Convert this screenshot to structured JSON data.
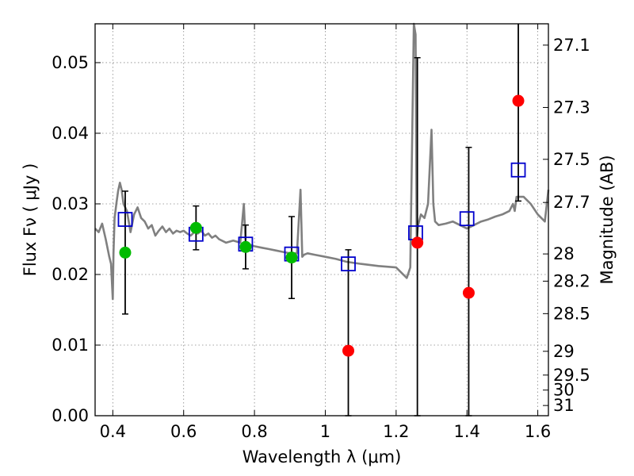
{
  "chart_data": {
    "type": "scatter",
    "title": "",
    "xlabel": "Wavelength  λ (μm)",
    "ylabel": "Flux  Fν ( μJy )",
    "ylabel_right": "Magnitude (AB)",
    "xlim": [
      0.35,
      1.63
    ],
    "ylim": [
      0.0,
      0.0555
    ],
    "grid": true,
    "legend": "none",
    "x_ticks": [
      {
        "value": 0.4,
        "label": "0.4"
      },
      {
        "value": 0.6,
        "label": "0.6"
      },
      {
        "value": 0.8,
        "label": "0.8"
      },
      {
        "value": 1.0,
        "label": "1"
      },
      {
        "value": 1.2,
        "label": "1.2"
      },
      {
        "value": 1.4,
        "label": "1.4"
      },
      {
        "value": 1.6,
        "label": "1.6"
      }
    ],
    "y_ticks": [
      {
        "value": 0.0,
        "label": "0.00"
      },
      {
        "value": 0.01,
        "label": "0.01"
      },
      {
        "value": 0.02,
        "label": "0.02"
      },
      {
        "value": 0.03,
        "label": "0.03"
      },
      {
        "value": 0.04,
        "label": "0.04"
      },
      {
        "value": 0.05,
        "label": "0.05"
      }
    ],
    "right_ticks": [
      {
        "value": 27.1,
        "label": "27.1"
      },
      {
        "value": 27.3,
        "label": "27.3"
      },
      {
        "value": 27.5,
        "label": "27.5"
      },
      {
        "value": 27.7,
        "label": "27.7"
      },
      {
        "value": 28.0,
        "label": "28"
      },
      {
        "value": 28.2,
        "label": "28.2"
      },
      {
        "value": 28.5,
        "label": "28.5"
      },
      {
        "value": 29.0,
        "label": "29"
      },
      {
        "value": 29.5,
        "label": "29.5"
      },
      {
        "value": 30.0,
        "label": "30"
      },
      {
        "value": 31.0,
        "label": "31"
      }
    ],
    "colors": {
      "model": "#808080",
      "model_photometry": "#0000cc",
      "detections": "#00bb00",
      "nondetections": "#ff0000",
      "errorbars": "#000000",
      "grid": "#888888"
    },
    "series": [
      {
        "kind": "line",
        "x": [
          0.35,
          0.36,
          0.37,
          0.38,
          0.39,
          0.395,
          0.4,
          0.402,
          0.405,
          0.41,
          0.415,
          0.42,
          0.425,
          0.43,
          0.44,
          0.45,
          0.46,
          0.47,
          0.48,
          0.49,
          0.5,
          0.51,
          0.52,
          0.53,
          0.54,
          0.55,
          0.56,
          0.57,
          0.58,
          0.59,
          0.6,
          0.61,
          0.62,
          0.63,
          0.64,
          0.65,
          0.66,
          0.67,
          0.68,
          0.69,
          0.7,
          0.72,
          0.74,
          0.76,
          0.77,
          0.775,
          0.78,
          0.8,
          0.82,
          0.84,
          0.86,
          0.88,
          0.9,
          0.92,
          0.93,
          0.935,
          0.94,
          0.95,
          0.97,
          1.0,
          1.03,
          1.06,
          1.1,
          1.15,
          1.2,
          1.23,
          1.24,
          1.25,
          1.255,
          1.258,
          1.262,
          1.27,
          1.28,
          1.29,
          1.3,
          1.305,
          1.31,
          1.32,
          1.34,
          1.36,
          1.38,
          1.4,
          1.42,
          1.44,
          1.46,
          1.48,
          1.5,
          1.52,
          1.53,
          1.535,
          1.54,
          1.56,
          1.58,
          1.6,
          1.62,
          1.63
        ],
        "y": [
          0.0265,
          0.026,
          0.0272,
          0.025,
          0.0225,
          0.0215,
          0.0165,
          0.023,
          0.028,
          0.03,
          0.0318,
          0.033,
          0.032,
          0.03,
          0.029,
          0.026,
          0.0285,
          0.0295,
          0.028,
          0.0275,
          0.0265,
          0.027,
          0.0255,
          0.0262,
          0.0268,
          0.026,
          0.0265,
          0.0258,
          0.0262,
          0.026,
          0.0262,
          0.0258,
          0.0255,
          0.026,
          0.0258,
          0.0262,
          0.0255,
          0.0258,
          0.0252,
          0.0255,
          0.025,
          0.0245,
          0.0248,
          0.0245,
          0.03,
          0.0245,
          0.0243,
          0.024,
          0.0238,
          0.0236,
          0.0234,
          0.0232,
          0.023,
          0.023,
          0.032,
          0.0225,
          0.0228,
          0.023,
          0.0228,
          0.0225,
          0.0222,
          0.0218,
          0.0215,
          0.0212,
          0.021,
          0.0195,
          0.021,
          0.056,
          0.054,
          0.025,
          0.027,
          0.0285,
          0.028,
          0.03,
          0.0405,
          0.03,
          0.0275,
          0.027,
          0.0272,
          0.0275,
          0.027,
          0.0265,
          0.027,
          0.0275,
          0.0278,
          0.0282,
          0.0285,
          0.029,
          0.03,
          0.029,
          0.031,
          0.031,
          0.03,
          0.0285,
          0.0275,
          0.032
        ]
      },
      {
        "kind": "squares",
        "x": [
          0.435,
          0.635,
          0.775,
          0.905,
          1.065,
          1.255,
          1.4,
          1.545
        ],
        "y": [
          0.0278,
          0.0257,
          0.0243,
          0.0229,
          0.0215,
          0.0259,
          0.0279,
          0.0348
        ]
      },
      {
        "kind": "points",
        "x": [
          0.435,
          0.635,
          0.775,
          0.905
        ],
        "y": [
          0.0231,
          0.0266,
          0.0239,
          0.0224
        ],
        "err": [
          0.0087,
          0.0031,
          0.0031,
          0.0058
        ]
      },
      {
        "kind": "points",
        "x": [
          1.065,
          1.26,
          1.405,
          1.545
        ],
        "y": [
          0.0092,
          0.0245,
          0.0174,
          0.0446
        ],
        "err_low": [
          0.0092,
          0.0245,
          0.0174,
          0.0142
        ],
        "err_high": [
          0.0143,
          0.0262,
          0.0206,
          0.0114
        ]
      }
    ]
  }
}
